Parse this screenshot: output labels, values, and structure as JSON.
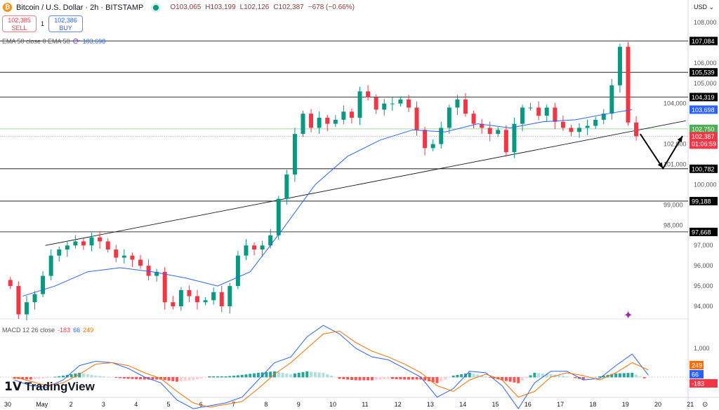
{
  "header": {
    "symbol_title": "Bitcoin / U.S. Dollar · 2h · BITSTAMP",
    "open": "O103,065",
    "high": "H103,199",
    "low": "L102,126",
    "close": "C102,387",
    "change": "−678 (−0.66%)"
  },
  "trade": {
    "sell_price": "102,385",
    "sell_label": "SELL",
    "spread": "1",
    "buy_price": "102,386",
    "buy_label": "BUY"
  },
  "ema_legend": {
    "label": "EMA 50 close 0 EMA 50",
    "value": "103,698"
  },
  "macd_legend": {
    "label": "MACD 12 26 close",
    "hist": "-183",
    "macd": "66",
    "signal": "249"
  },
  "currency": "USD",
  "brand": "TradingView",
  "colors": {
    "up": "#089981",
    "down": "#f23645",
    "ema": "#2962ff",
    "macd": "#2962ff",
    "signal": "#ff6d00",
    "support": "#000000",
    "green_level": "#4caf50"
  },
  "chart_data": {
    "type": "candlestick",
    "interval": "2h",
    "x_tick_labels": [
      "30",
      "May",
      "2",
      "3",
      "4",
      "5",
      "6",
      "7",
      "8",
      "9",
      "10",
      "11",
      "12",
      "13",
      "14",
      "15",
      "16",
      "17",
      "18",
      "19",
      "20",
      "21"
    ],
    "y_tick_labels": [
      "108,000",
      "106,000",
      "105,000",
      "104,000",
      "102,000",
      "101,000",
      "100,000",
      "99,000",
      "98,000",
      "97,000",
      "96,000",
      "95,000",
      "94,000"
    ],
    "ylim": [
      93500,
      108900
    ],
    "closes_6h_from_apr30": [
      95000,
      93600,
      94200,
      94600,
      95500,
      96500,
      96800,
      97000,
      97200,
      97000,
      97400,
      97200,
      96800,
      96400,
      96500,
      96300,
      96000,
      95500,
      95700,
      94200,
      94000,
      94800,
      94500,
      94200,
      94300,
      94700,
      94000,
      95000,
      96500,
      97000,
      96800,
      97000,
      97500,
      99300,
      100500,
      102500,
      103500,
      102800,
      103300,
      103000,
      103200,
      103600,
      103300,
      104600,
      104300,
      103700,
      104000,
      104000,
      104200,
      103800,
      102700,
      101800,
      102000,
      102800,
      103800,
      104200,
      103500,
      103000,
      102800,
      102500,
      102700,
      101600,
      103000,
      103800,
      103800,
      103400,
      103800,
      103100,
      102800,
      102600,
      102800,
      102900,
      103200,
      103500,
      104900,
      106800,
      103065,
      102387
    ],
    "ema50_daily": [
      94500,
      95000,
      95700,
      95900,
      95700,
      95400,
      95000,
      95700,
      97800,
      100000,
      101400,
      102200,
      102700,
      102600,
      103000,
      102800,
      103100,
      103200,
      103500,
      103698
    ],
    "horizontal_levels": [
      {
        "value": 107084,
        "label": "107,084"
      },
      {
        "value": 105539,
        "label": "105,539"
      },
      {
        "value": 104319,
        "label": "104,319"
      },
      {
        "value": 100782,
        "label": "100,782"
      },
      {
        "value": 99188,
        "label": "99,188"
      },
      {
        "value": 97668,
        "label": "97,668"
      }
    ],
    "green_level": {
      "value": 102750,
      "label": "102,750"
    },
    "last_price": {
      "value": 102387,
      "label": "102,387",
      "countdown": "01:06:59"
    },
    "ema_price_label": "103,698",
    "trendline": [
      {
        "date": "May 1.2",
        "value": 97000
      },
      {
        "date": "May 20.9",
        "value": 103150
      }
    ],
    "projection_arrows": [
      {
        "date": "May 19.5",
        "value": 102500
      },
      {
        "date": "May 20.2",
        "value": 100800
      },
      {
        "date": "May 20.8",
        "value": 102400
      }
    ],
    "macd": {
      "axis_label": "1,000",
      "macd_12h": [
        -100,
        -300,
        -350,
        -100,
        400,
        550,
        500,
        300,
        0,
        -200,
        -800,
        -1100,
        -1000,
        -900,
        -700,
        -100,
        500,
        700,
        1400,
        1800,
        1500,
        1000,
        700,
        600,
        300,
        0,
        -700,
        -400,
        200,
        150,
        -300,
        -1100,
        -200,
        200,
        200,
        -100,
        -50,
        400,
        800,
        66
      ],
      "signal_12h": [
        0,
        -150,
        -300,
        -200,
        100,
        450,
        500,
        400,
        150,
        -50,
        -500,
        -900,
        -1050,
        -950,
        -850,
        -400,
        100,
        500,
        1000,
        1500,
        1600,
        1200,
        900,
        700,
        450,
        150,
        -300,
        -500,
        -100,
        100,
        -100,
        -700,
        -500,
        0,
        150,
        50,
        -100,
        150,
        500,
        249
      ],
      "labels": {
        "signal": "249",
        "macd": "66",
        "hist": "-183"
      }
    }
  }
}
